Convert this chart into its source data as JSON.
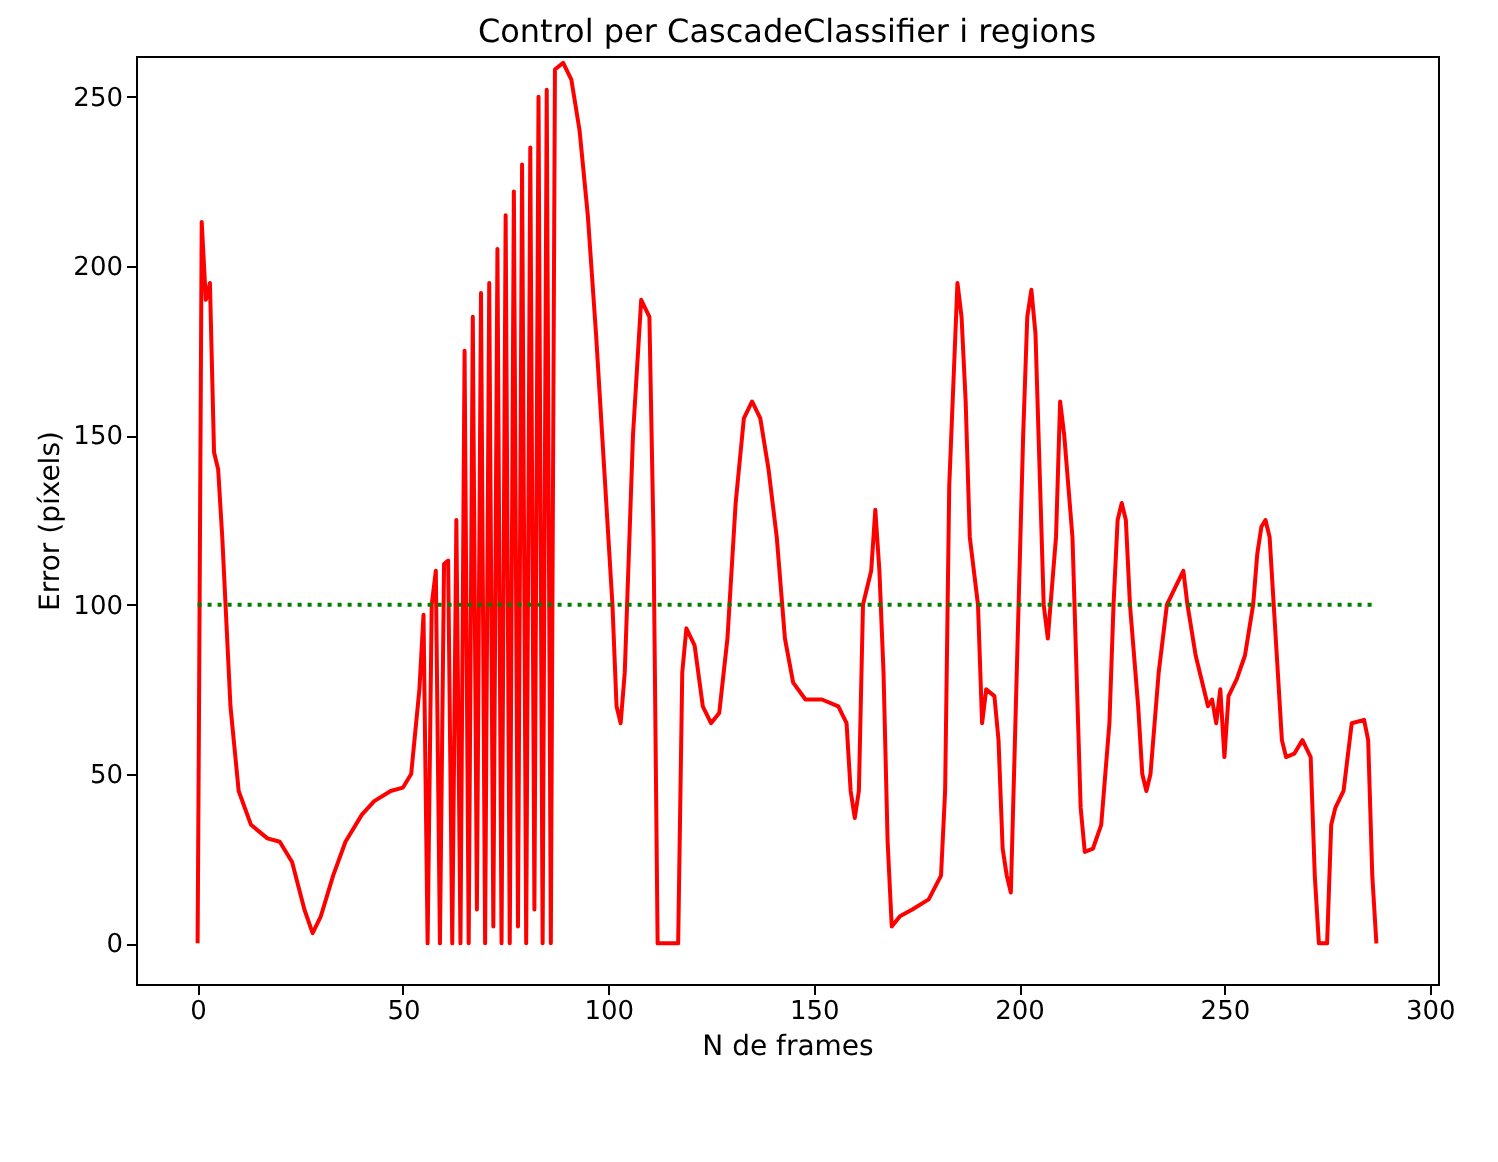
{
  "chart_data": {
    "type": "line",
    "title": "Control per CascadeClassifier i regions",
    "xlabel": "N de frames",
    "ylabel": "Error (píxels)",
    "xlim": [
      -15,
      302
    ],
    "ylim": [
      -12,
      262
    ],
    "xticks": [
      0,
      50,
      100,
      150,
      200,
      250,
      300
    ],
    "yticks": [
      0,
      50,
      100,
      150,
      200,
      250
    ],
    "grid": false,
    "series": [
      {
        "color": "#ff0000",
        "line_style": "solid",
        "x": [
          0,
          0.3,
          1,
          2,
          3,
          4,
          5,
          6,
          8,
          10,
          13,
          17,
          20,
          23,
          26,
          28,
          30,
          33,
          36,
          40,
          43,
          47,
          50,
          52,
          54,
          55,
          56,
          57,
          58,
          59,
          60,
          61,
          62,
          63,
          64,
          65,
          66,
          67,
          68,
          69,
          70,
          71,
          72,
          73,
          74,
          75,
          76,
          77,
          78,
          79,
          80,
          81,
          82,
          83,
          84,
          85,
          86,
          87,
          89,
          91,
          93,
          95,
          97,
          99,
          101,
          102,
          103,
          104,
          106,
          108,
          110,
          111,
          112,
          114,
          116,
          117,
          118,
          119,
          121,
          123,
          125,
          127,
          129,
          131,
          133,
          135,
          137,
          139,
          141,
          143,
          145,
          148,
          152,
          156,
          158,
          159,
          160,
          161,
          162,
          164,
          165,
          166,
          167,
          168,
          169,
          171,
          174,
          178,
          181,
          182,
          183,
          184,
          185,
          186,
          187,
          188,
          190,
          191,
          192,
          194,
          195,
          196,
          197,
          198,
          199,
          201,
          202,
          203,
          204,
          205,
          206,
          207,
          209,
          210,
          211,
          213,
          214,
          215,
          216,
          218,
          220,
          222,
          223,
          224,
          225,
          226,
          227,
          229,
          230,
          231,
          232,
          234,
          236,
          238,
          240,
          241,
          243,
          245,
          246,
          247,
          248,
          249,
          250,
          251,
          253,
          255,
          257,
          258,
          259,
          260,
          261,
          262,
          263,
          264,
          265,
          267,
          269,
          271,
          272,
          273,
          275,
          276,
          277,
          279,
          280,
          281,
          284,
          285,
          286,
          287
        ],
        "values": [
          0,
          60,
          213,
          190,
          195,
          145,
          140,
          120,
          70,
          45,
          35,
          31,
          30,
          24,
          10,
          3,
          8,
          20,
          30,
          38,
          42,
          45,
          46,
          50,
          75,
          97,
          0,
          100,
          110,
          0,
          112,
          113,
          0,
          125,
          0,
          175,
          0,
          185,
          10,
          192,
          0,
          195,
          5,
          205,
          0,
          215,
          0,
          222,
          5,
          230,
          0,
          235,
          10,
          250,
          0,
          252,
          0,
          258,
          260,
          255,
          240,
          215,
          180,
          140,
          100,
          70,
          65,
          80,
          150,
          190,
          185,
          120,
          0,
          0,
          0,
          0,
          80,
          93,
          88,
          70,
          65,
          68,
          90,
          130,
          155,
          160,
          155,
          140,
          120,
          90,
          77,
          72,
          72,
          70,
          65,
          45,
          37,
          45,
          100,
          110,
          128,
          110,
          80,
          30,
          5,
          8,
          10,
          13,
          20,
          45,
          135,
          165,
          195,
          185,
          160,
          120,
          100,
          65,
          75,
          73,
          60,
          28,
          20,
          15,
          60,
          150,
          185,
          193,
          180,
          140,
          100,
          90,
          120,
          160,
          150,
          120,
          80,
          40,
          27,
          28,
          35,
          65,
          100,
          125,
          130,
          125,
          100,
          70,
          50,
          45,
          50,
          80,
          100,
          105,
          110,
          100,
          85,
          75,
          70,
          72,
          65,
          75,
          55,
          73,
          78,
          85,
          100,
          115,
          123,
          125,
          120,
          100,
          80,
          60,
          55,
          56,
          60,
          55,
          20,
          0,
          0,
          35,
          40,
          45,
          55,
          65,
          66,
          60,
          20,
          0
        ]
      },
      {
        "color": "#008000",
        "line_style": "dotted",
        "x": [
          0,
          287
        ],
        "values": [
          100,
          100
        ]
      }
    ]
  }
}
